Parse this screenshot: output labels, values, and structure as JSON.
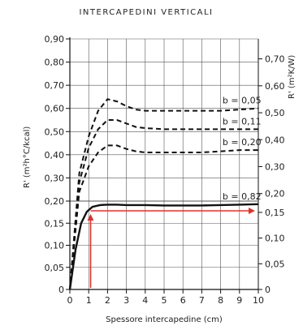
{
  "chart_data": {
    "type": "line",
    "title": "INTERCAPEDINI VERTICALI",
    "xlabel": "Spessore intercapedine (cm)",
    "ylabel_left": "R' (m²h°C/kcal)",
    "ylabel_right": "R' (m²K/W)",
    "xlim": [
      0,
      10
    ],
    "ylim_left": [
      0,
      0.9
    ],
    "ylim_right": [
      0,
      0.774
    ],
    "x_ticks": [
      "0",
      "1",
      "2",
      "3",
      "4",
      "5",
      "6",
      "7",
      "8",
      "9",
      "10"
    ],
    "y_ticks_left": [
      "0",
      "0,05",
      "0,10",
      "0,15",
      "0,20",
      "0,30",
      "0,40",
      "0,50",
      "0,60",
      "0,70",
      "0,80",
      "0,90"
    ],
    "y_ticks_right": [
      "0",
      "0,05",
      "0,10",
      "0,15",
      "0,20",
      "0,30",
      "0,40",
      "0,50",
      "0,60",
      "0,70"
    ],
    "y_tick_values_right": [
      0,
      0.05,
      0.1,
      0.15,
      0.2,
      0.3,
      0.4,
      0.5,
      0.6,
      0.7
    ],
    "grid": true,
    "series": [
      {
        "name": "b = 0,05",
        "style": "dashed",
        "x": [
          0,
          0.5,
          1,
          1.5,
          2,
          2.5,
          3,
          3.5,
          4,
          5,
          6,
          7,
          8,
          9,
          10
        ],
        "y": [
          0,
          0.32,
          0.48,
          0.59,
          0.64,
          0.63,
          0.61,
          0.595,
          0.59,
          0.59,
          0.59,
          0.59,
          0.59,
          0.595,
          0.6
        ]
      },
      {
        "name": "b = 0,11",
        "style": "dashed",
        "x": [
          0,
          0.5,
          1,
          1.5,
          2,
          2.5,
          3,
          3.5,
          4,
          5,
          6,
          7,
          8,
          9,
          10
        ],
        "y": [
          0,
          0.28,
          0.43,
          0.51,
          0.55,
          0.55,
          0.535,
          0.52,
          0.515,
          0.51,
          0.51,
          0.51,
          0.51,
          0.51,
          0.51
        ]
      },
      {
        "name": "b = 0,20",
        "style": "dashed",
        "x": [
          0,
          0.5,
          1,
          1.5,
          2,
          2.5,
          3,
          3.5,
          4,
          5,
          6,
          7,
          8,
          9,
          10
        ],
        "y": [
          0,
          0.24,
          0.35,
          0.41,
          0.44,
          0.44,
          0.425,
          0.415,
          0.41,
          0.41,
          0.41,
          0.41,
          0.415,
          0.42,
          0.42
        ]
      },
      {
        "name": "b = 0,82",
        "style": "solid",
        "x": [
          0,
          0.3,
          0.6,
          0.9,
          1.2,
          1.6,
          2,
          2.5,
          3,
          4,
          5,
          6,
          7,
          8,
          9,
          10
        ],
        "y": [
          0,
          0.09,
          0.15,
          0.176,
          0.187,
          0.191,
          0.192,
          0.192,
          0.191,
          0.191,
          0.19,
          0.19,
          0.19,
          0.191,
          0.192,
          0.193
        ]
      }
    ],
    "annotations": {
      "arrow_color": "#e0312b",
      "vertical_arrow_x": 1.1,
      "horizontal_arrow_y": 0.178
    }
  }
}
